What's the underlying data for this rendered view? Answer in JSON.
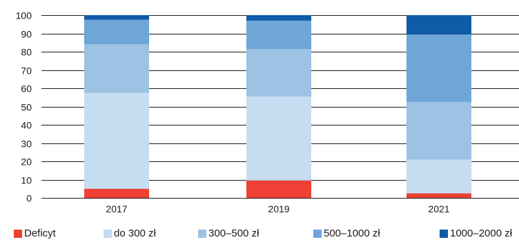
{
  "chart_data": {
    "type": "bar",
    "stacked": true,
    "categories": [
      "2017",
      "2019",
      "2021"
    ],
    "ylim": [
      0,
      100
    ],
    "yticks": [
      0,
      10,
      20,
      30,
      40,
      50,
      60,
      70,
      80,
      90,
      100
    ],
    "grid": true,
    "legend_position": "bottom",
    "series": [
      {
        "name": "Deficyt",
        "color": "#ee4035",
        "values": [
          5,
          9.5,
          2.5
        ]
      },
      {
        "name": "do 300 zł",
        "color": "#c6dcf0",
        "values": [
          52.5,
          46,
          18.5
        ]
      },
      {
        "name": "300–500 zł",
        "color": "#9cc2e4",
        "values": [
          26.5,
          26,
          31.5
        ]
      },
      {
        "name": "500–1000 zł",
        "color": "#6ea6d8",
        "values": [
          13.5,
          15.5,
          37
        ]
      },
      {
        "name": "1000–2000 zł",
        "color": "#0f5ba7",
        "values": [
          2.5,
          3,
          10.5
        ]
      }
    ]
  }
}
